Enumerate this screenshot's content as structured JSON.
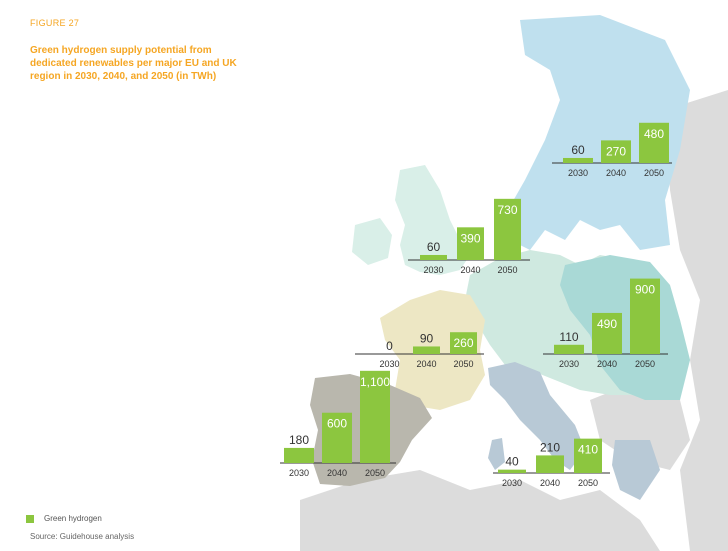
{
  "figure_label": "FIGURE 27",
  "title": "Green hydrogen supply potential from dedicated renewables per major EU and UK region in 2030, 2040, and 2050 (in TWh)",
  "legend": {
    "label": "Green hydrogen",
    "color": "#8cc63f"
  },
  "source": "Source: Guidehouse analysis",
  "colors": {
    "bar": "#8cc63f",
    "nordics": "#bfe0ee",
    "uk": "#d9efe8",
    "central": "#cfe9e0",
    "east": "#a9d9d6",
    "france": "#ede7c4",
    "iberia": "#b9b7ad",
    "italy": "#b8c9d6",
    "other": "#dcdcdc"
  },
  "chart_data": {
    "type": "bar",
    "unit": "TWh",
    "categories": [
      "2030",
      "2040",
      "2050"
    ],
    "regions": [
      {
        "name": "Nordics",
        "values": [
          60,
          270,
          480
        ]
      },
      {
        "name": "UK and Ireland",
        "values": [
          60,
          390,
          730
        ]
      },
      {
        "name": "Central Europe",
        "values": [
          110,
          490,
          900
        ]
      },
      {
        "name": "France",
        "values": [
          0,
          90,
          260
        ]
      },
      {
        "name": "Iberia",
        "values": [
          180,
          600,
          1100
        ]
      },
      {
        "name": "Southern Europe",
        "values": [
          40,
          210,
          410
        ]
      }
    ]
  }
}
